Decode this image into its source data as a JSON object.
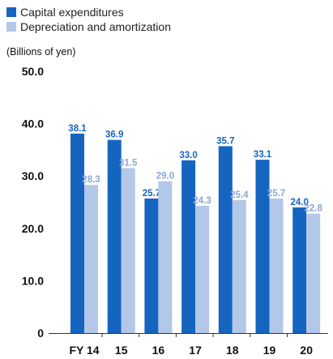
{
  "chart_data": {
    "type": "bar",
    "legend_position": "top-left",
    "ylabel": "(Billions of yen)",
    "ylim": [
      0,
      50
    ],
    "yticks": [
      "0",
      "10.0",
      "20.0",
      "30.0",
      "40.0",
      "50.0"
    ],
    "categories": [
      "FY 14",
      "15",
      "16",
      "17",
      "18",
      "19",
      "20"
    ],
    "series": [
      {
        "name": "Capital expenditures",
        "color": "#1565c0",
        "values": [
          38.1,
          36.9,
          25.7,
          33.0,
          35.7,
          33.1,
          24.0
        ],
        "labels": [
          "38.1",
          "36.9",
          "25.7",
          "33.0",
          "35.7",
          "33.1",
          "24.0"
        ]
      },
      {
        "name": "Depreciation and amortization",
        "color": "#b3c7e8",
        "values": [
          28.3,
          31.5,
          29.0,
          24.3,
          25.4,
          25.7,
          22.8
        ],
        "labels": [
          "28.3",
          "31.5",
          "29.0",
          "24.3",
          "25.4",
          "25.7",
          "22.8"
        ]
      }
    ]
  }
}
